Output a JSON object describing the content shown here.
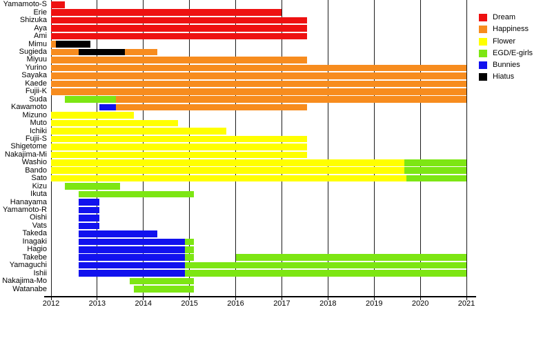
{
  "chart_data": {
    "type": "bar",
    "subtype": "horizontal-timeline-gantt",
    "title": "",
    "xlabel": "",
    "ylabel": "",
    "xlim": [
      2012,
      2021
    ],
    "x_ticks": [
      2012,
      2013,
      2014,
      2015,
      2016,
      2017,
      2018,
      2019,
      2020,
      2021
    ],
    "grid": "vertical",
    "legend_position": "top-right",
    "groups": [
      {
        "name": "Dream",
        "color": "#ee1111"
      },
      {
        "name": "Happiness",
        "color": "#f78c1e"
      },
      {
        "name": "Flower",
        "color": "#ffff00"
      },
      {
        "name": "EGD/E-girls",
        "color": "#7de613"
      },
      {
        "name": "Bunnies",
        "color": "#1212ee"
      },
      {
        "name": "Hiatus",
        "color": "#000000"
      }
    ],
    "rows": [
      {
        "name": "Yamamoto-S",
        "segments": [
          {
            "group": "Dream",
            "start": 2012.0,
            "end": 2012.3
          }
        ]
      },
      {
        "name": "Erie",
        "segments": [
          {
            "group": "Dream",
            "start": 2012.0,
            "end": 2017.0
          }
        ]
      },
      {
        "name": "Shizuka",
        "segments": [
          {
            "group": "Dream",
            "start": 2012.0,
            "end": 2017.55
          }
        ]
      },
      {
        "name": "Aya",
        "segments": [
          {
            "group": "Dream",
            "start": 2012.0,
            "end": 2017.55
          }
        ]
      },
      {
        "name": "Ami",
        "segments": [
          {
            "group": "Dream",
            "start": 2012.0,
            "end": 2017.55
          }
        ]
      },
      {
        "name": "Mimu",
        "segments": [
          {
            "group": "Happiness",
            "start": 2012.0,
            "end": 2012.1
          },
          {
            "group": "Hiatus",
            "start": 2012.1,
            "end": 2012.85
          }
        ]
      },
      {
        "name": "Sugieda",
        "segments": [
          {
            "group": "Happiness",
            "start": 2012.0,
            "end": 2012.6
          },
          {
            "group": "Hiatus",
            "start": 2012.6,
            "end": 2013.6
          },
          {
            "group": "Happiness",
            "start": 2013.6,
            "end": 2014.3
          }
        ]
      },
      {
        "name": "Miyuu",
        "segments": [
          {
            "group": "Happiness",
            "start": 2012.0,
            "end": 2017.55
          }
        ]
      },
      {
        "name": "Yurino",
        "segments": [
          {
            "group": "Happiness",
            "start": 2012.0,
            "end": 2021.0
          }
        ]
      },
      {
        "name": "Sayaka",
        "segments": [
          {
            "group": "Happiness",
            "start": 2012.0,
            "end": 2021.0
          }
        ]
      },
      {
        "name": "Kaede",
        "segments": [
          {
            "group": "Happiness",
            "start": 2012.0,
            "end": 2021.0
          }
        ]
      },
      {
        "name": "Fujii-K",
        "segments": [
          {
            "group": "Happiness",
            "start": 2012.0,
            "end": 2021.0
          }
        ]
      },
      {
        "name": "Suda",
        "segments": [
          {
            "group": "EGD/E-girls",
            "start": 2012.3,
            "end": 2013.4
          },
          {
            "group": "Happiness",
            "start": 2013.4,
            "end": 2021.0
          }
        ]
      },
      {
        "name": "Kawamoto",
        "segments": [
          {
            "group": "Bunnies",
            "start": 2013.05,
            "end": 2013.4
          },
          {
            "group": "Happiness",
            "start": 2013.4,
            "end": 2017.55
          }
        ]
      },
      {
        "name": "Mizuno",
        "segments": [
          {
            "group": "Flower",
            "start": 2012.0,
            "end": 2013.8
          }
        ]
      },
      {
        "name": "Muto",
        "segments": [
          {
            "group": "Flower",
            "start": 2012.0,
            "end": 2014.75
          }
        ]
      },
      {
        "name": "Ichiki",
        "segments": [
          {
            "group": "Flower",
            "start": 2012.0,
            "end": 2015.8
          }
        ]
      },
      {
        "name": "Fujii-S",
        "segments": [
          {
            "group": "Flower",
            "start": 2012.0,
            "end": 2017.55
          }
        ]
      },
      {
        "name": "Shigetome",
        "segments": [
          {
            "group": "Flower",
            "start": 2012.0,
            "end": 2017.55
          }
        ]
      },
      {
        "name": "Nakajima-Mi",
        "segments": [
          {
            "group": "Flower",
            "start": 2012.0,
            "end": 2017.55
          }
        ]
      },
      {
        "name": "Washio",
        "segments": [
          {
            "group": "Flower",
            "start": 2012.0,
            "end": 2019.65
          },
          {
            "group": "EGD/E-girls",
            "start": 2019.65,
            "end": 2021.0
          }
        ]
      },
      {
        "name": "Bando",
        "segments": [
          {
            "group": "Flower",
            "start": 2012.0,
            "end": 2019.65
          },
          {
            "group": "EGD/E-girls",
            "start": 2019.65,
            "end": 2021.0
          }
        ]
      },
      {
        "name": "Sato",
        "segments": [
          {
            "group": "Flower",
            "start": 2012.0,
            "end": 2019.7
          },
          {
            "group": "EGD/E-girls",
            "start": 2019.7,
            "end": 2021.0
          }
        ]
      },
      {
        "name": "Kizu",
        "segments": [
          {
            "group": "EGD/E-girls",
            "start": 2012.3,
            "end": 2013.5
          }
        ]
      },
      {
        "name": "Ikuta",
        "segments": [
          {
            "group": "EGD/E-girls",
            "start": 2012.6,
            "end": 2015.1
          }
        ]
      },
      {
        "name": "Hanayama",
        "segments": [
          {
            "group": "Bunnies",
            "start": 2012.6,
            "end": 2013.05
          }
        ]
      },
      {
        "name": "Yamamoto-R",
        "segments": [
          {
            "group": "Bunnies",
            "start": 2012.6,
            "end": 2013.05
          }
        ]
      },
      {
        "name": "Oishi",
        "segments": [
          {
            "group": "Bunnies",
            "start": 2012.6,
            "end": 2013.05
          }
        ]
      },
      {
        "name": "Vats",
        "segments": [
          {
            "group": "Bunnies",
            "start": 2012.6,
            "end": 2013.05
          }
        ]
      },
      {
        "name": "Takeda",
        "segments": [
          {
            "group": "Bunnies",
            "start": 2012.6,
            "end": 2014.3
          }
        ]
      },
      {
        "name": "Inagaki",
        "segments": [
          {
            "group": "Bunnies",
            "start": 2012.6,
            "end": 2014.9
          },
          {
            "group": "EGD/E-girls",
            "start": 2014.9,
            "end": 2015.1
          }
        ]
      },
      {
        "name": "Hagio",
        "segments": [
          {
            "group": "Bunnies",
            "start": 2012.6,
            "end": 2014.9
          },
          {
            "group": "EGD/E-girls",
            "start": 2014.9,
            "end": 2015.1
          }
        ]
      },
      {
        "name": "Takebe",
        "segments": [
          {
            "group": "Bunnies",
            "start": 2012.6,
            "end": 2014.9
          },
          {
            "group": "EGD/E-girls",
            "start": 2014.9,
            "end": 2015.1
          },
          {
            "group": "EGD/E-girls",
            "start": 2016.0,
            "end": 2021.0
          }
        ]
      },
      {
        "name": "Yamaguchi",
        "segments": [
          {
            "group": "Bunnies",
            "start": 2012.6,
            "end": 2014.9
          },
          {
            "group": "EGD/E-girls",
            "start": 2014.9,
            "end": 2021.0
          }
        ]
      },
      {
        "name": "Ishii",
        "segments": [
          {
            "group": "Bunnies",
            "start": 2012.6,
            "end": 2014.9
          },
          {
            "group": "EGD/E-girls",
            "start": 2014.9,
            "end": 2021.0
          }
        ]
      },
      {
        "name": "Nakajima-Mo",
        "segments": [
          {
            "group": "EGD/E-girls",
            "start": 2013.7,
            "end": 2015.1
          }
        ]
      },
      {
        "name": "Watanabe",
        "segments": [
          {
            "group": "EGD/E-girls",
            "start": 2013.8,
            "end": 2015.1
          }
        ]
      }
    ]
  },
  "legend": {
    "items": [
      "Dream",
      "Happiness",
      "Flower",
      "EGD/E-girls",
      "Bunnies",
      "Hiatus"
    ]
  }
}
